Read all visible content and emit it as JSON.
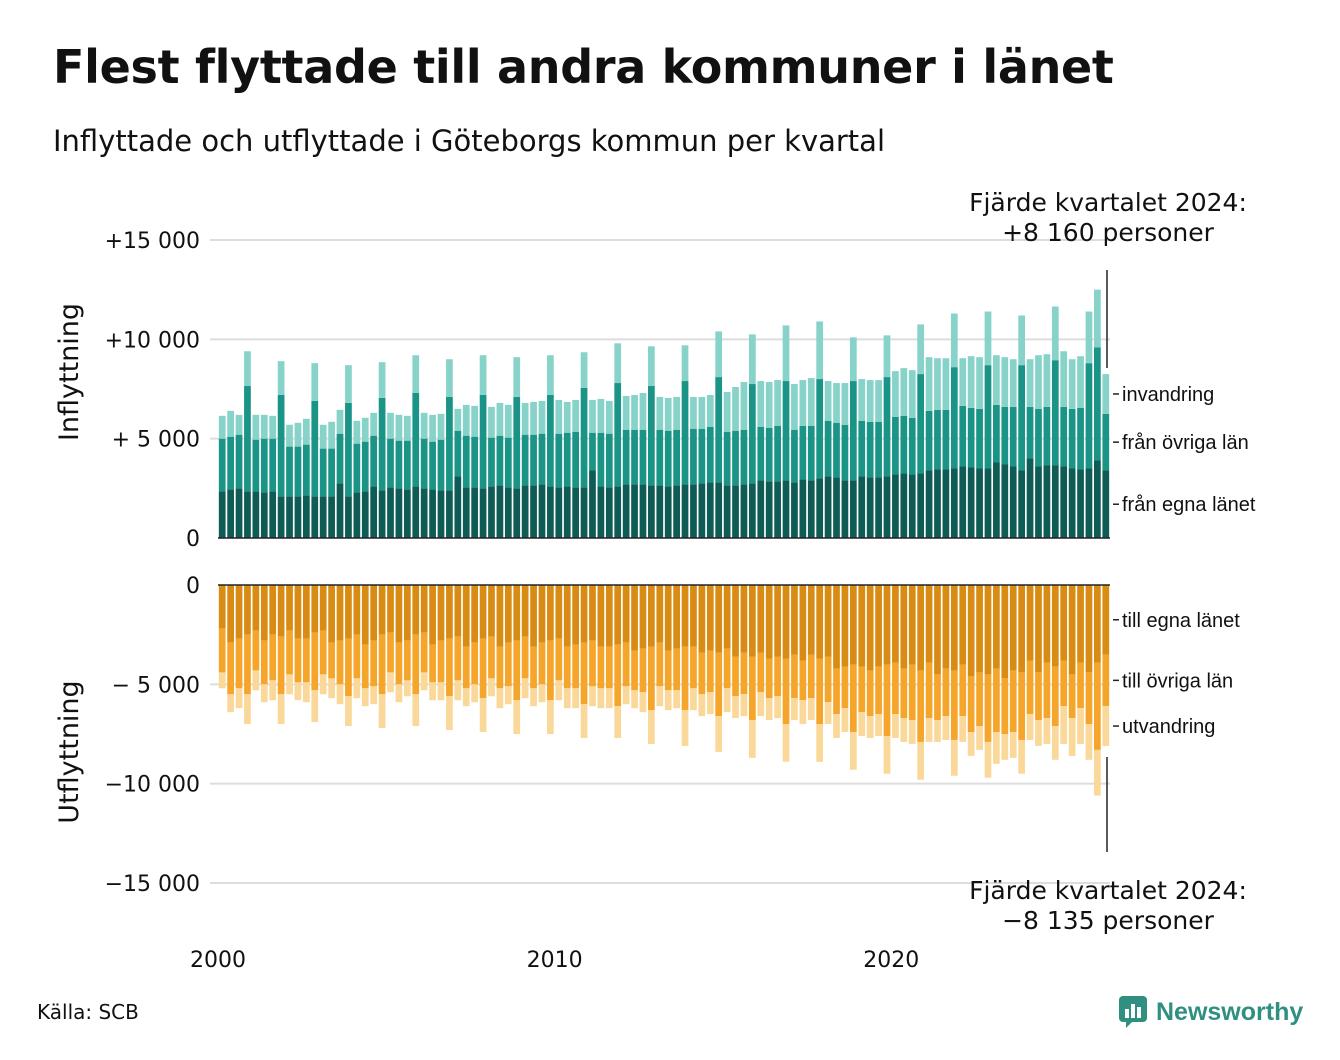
{
  "title": "Flest flyttade till andra kommuner i länet",
  "subtitle": "Inflyttade och utflyttade i Göteborgs kommun per kvartal",
  "source": "Källa: SCB",
  "brand": "Newsworthy",
  "annotations": {
    "in_title": "Fjärde kvartalet 2024:",
    "in_value": "+8 160 personer",
    "out_title": "Fjärde kvartalet 2024:",
    "out_value": "−8 135 personer"
  },
  "colors": {
    "in_egna": "#0e5c55",
    "in_ovriga": "#1a9486",
    "in_invandring": "#88d3c9",
    "out_egna": "#d88c14",
    "out_ovriga": "#f6a52b",
    "out_utvandring": "#fad89a",
    "brand": "#2f8f80",
    "grid": "#dddddd"
  },
  "chart_data": {
    "type": "bar",
    "stacked": true,
    "x_start": "2000-Q1",
    "x_ticks": [
      "2000",
      "2010",
      "2020"
    ],
    "panels": [
      {
        "ylabel": "Inflyttning",
        "ylim": [
          0,
          15000
        ],
        "yticks": [
          0,
          5000,
          10000,
          15000
        ],
        "ytick_labels": [
          "0",
          "+ 5 000",
          "+10 000",
          "+15 000"
        ],
        "series": [
          {
            "name": "från egna länet",
            "values": [
              2350,
              2450,
              2500,
              2350,
              2350,
              2300,
              2350,
              2100,
              2100,
              2100,
              2150,
              2100,
              2100,
              2100,
              2750,
              2100,
              2300,
              2350,
              2600,
              2400,
              2550,
              2500,
              2450,
              2600,
              2500,
              2450,
              2400,
              2400,
              3100,
              2550,
              2550,
              2500,
              2600,
              2650,
              2550,
              2500,
              2650,
              2650,
              2700,
              2600,
              2550,
              2600,
              2550,
              2550,
              3400,
              2600,
              2550,
              2600,
              2700,
              2700,
              2700,
              2650,
              2650,
              2600,
              2650,
              2700,
              2700,
              2750,
              2800,
              2800,
              2650,
              2650,
              2700,
              2750,
              2900,
              2850,
              2850,
              2900,
              2800,
              2950,
              2900,
              3000,
              3100,
              3050,
              2900,
              2900,
              3100,
              3050,
              3050,
              3100,
              3200,
              3250,
              3200,
              3250,
              3400,
              3450,
              3450,
              3500,
              3600,
              3550,
              3500,
              3500,
              3800,
              3700,
              3600,
              3400,
              4000,
              3600,
              3650,
              3650,
              3600,
              3500,
              3450,
              3500,
              3900,
              3400
            ]
          },
          {
            "name": "från övriga län",
            "values": [
              2650,
              2650,
              2700,
              5300,
              2600,
              2700,
              2650,
              5100,
              2500,
              2500,
              2550,
              4800,
              2400,
              2400,
              2500,
              4700,
              2450,
              2500,
              2550,
              4650,
              2450,
              2400,
              2450,
              4700,
              2500,
              2400,
              2550,
              4700,
              2300,
              2600,
              2550,
              4700,
              2450,
              2500,
              2500,
              4600,
              2550,
              2550,
              2550,
              4600,
              2700,
              2700,
              2800,
              5000,
              1900,
              2700,
              2700,
              5200,
              2750,
              2750,
              2750,
              5000,
              2800,
              2800,
              2800,
              5200,
              2800,
              2750,
              2800,
              5300,
              2700,
              2750,
              2750,
              5000,
              2700,
              2700,
              2800,
              5000,
              2650,
              2700,
              2750,
              5000,
              2800,
              2750,
              2800,
              5000,
              2800,
              2800,
              2800,
              5000,
              2900,
              2900,
              2850,
              5000,
              3000,
              3000,
              3000,
              5100,
              3050,
              3000,
              3000,
              5200,
              2900,
              2900,
              3000,
              5300,
              2600,
              2900,
              2950,
              5300,
              3000,
              3000,
              3100,
              5300,
              5700,
              2850
            ]
          },
          {
            "name": "invandring",
            "values": [
              1150,
              1300,
              1000,
              1750,
              1250,
              1200,
              1150,
              1700,
              1100,
              1200,
              1300,
              1900,
              1200,
              1350,
              1200,
              1900,
              1150,
              1200,
              1150,
              1800,
              1300,
              1300,
              1250,
              1900,
              1300,
              1350,
              1300,
              1900,
              1100,
              1550,
              1550,
              2000,
              1550,
              1650,
              1650,
              2000,
              1600,
              1650,
              1650,
              2000,
              1700,
              1550,
              1600,
              1800,
              1650,
              1700,
              1650,
              2000,
              1700,
              1750,
              1850,
              2000,
              1650,
              1650,
              1650,
              1800,
              1600,
              1600,
              1600,
              2300,
              2000,
              2200,
              2400,
              2500,
              2300,
              2300,
              2300,
              2800,
              2300,
              2300,
              2400,
              2900,
              2000,
              2000,
              2100,
              2200,
              2100,
              2100,
              2100,
              2100,
              2300,
              2400,
              2400,
              2500,
              2700,
              2600,
              2600,
              2700,
              2400,
              2600,
              2600,
              2700,
              2500,
              2500,
              2400,
              2500,
              2400,
              2700,
              2650,
              2700,
              2800,
              2500,
              2600,
              2600,
              2900,
              2000
            ]
          }
        ]
      },
      {
        "ylabel": "Utflyttning",
        "ylim": [
          -15000,
          0
        ],
        "yticks": [
          0,
          -5000,
          -10000,
          -15000
        ],
        "ytick_labels": [
          "0",
          "− 5 000",
          "−10 000",
          "−15 000"
        ],
        "series": [
          {
            "name": "till egna länet",
            "values": [
              -2200,
              -2900,
              -2700,
              -2500,
              -2300,
              -2800,
              -2500,
              -2600,
              -2300,
              -2700,
              -2700,
              -2400,
              -2300,
              -2900,
              -2800,
              -2700,
              -2500,
              -3000,
              -2800,
              -2500,
              -2400,
              -2900,
              -2800,
              -2500,
              -2400,
              -3000,
              -2800,
              -2700,
              -2600,
              -3100,
              -2900,
              -2700,
              -2600,
              -3100,
              -2900,
              -2800,
              -2600,
              -3100,
              -2900,
              -2800,
              -2700,
              -3100,
              -3000,
              -2900,
              -2800,
              -3100,
              -3100,
              -3000,
              -2900,
              -3300,
              -3200,
              -3100,
              -2900,
              -3300,
              -3200,
              -3100,
              -3100,
              -3400,
              -3300,
              -3400,
              -3200,
              -3600,
              -3400,
              -3600,
              -3400,
              -3700,
              -3600,
              -3700,
              -3500,
              -3800,
              -3500,
              -3700,
              -3600,
              -4200,
              -4100,
              -4000,
              -4100,
              -4300,
              -4100,
              -4000,
              -3900,
              -4200,
              -4000,
              -4300,
              -3900,
              -4500,
              -4200,
              -4300,
              -4000,
              -4600,
              -4400,
              -4500,
              -4200,
              -4700,
              -4300,
              -4400,
              -3800,
              -4400,
              -3900,
              -4100,
              -3800,
              -4500,
              -3900,
              -4400,
              -3900,
              -3500
            ]
          },
          {
            "name": "till övriga län",
            "values": [
              -2200,
              -2600,
              -2500,
              -3000,
              -2000,
              -2200,
              -2300,
              -2900,
              -2200,
              -2200,
              -2200,
              -2900,
              -2200,
              -1800,
              -2200,
              -2900,
              -2200,
              -2200,
              -2300,
              -3000,
              -2000,
              -2100,
              -2000,
              -3000,
              -2000,
              -1900,
              -2100,
              -2900,
              -2200,
              -2100,
              -2100,
              -3000,
              -2100,
              -2100,
              -2200,
              -3000,
              -2100,
              -2100,
              -2100,
              -3000,
              -2100,
              -2100,
              -2200,
              -3100,
              -2300,
              -2100,
              -2100,
              -3100,
              -2200,
              -2000,
              -2200,
              -3200,
              -2200,
              -2000,
              -2100,
              -3200,
              -2100,
              -2100,
              -2100,
              -3200,
              -2000,
              -2000,
              -2100,
              -3200,
              -2000,
              -2000,
              -2000,
              -3300,
              -2200,
              -2000,
              -2200,
              -3300,
              -2300,
              -2300,
              -2100,
              -3400,
              -2300,
              -2300,
              -2400,
              -3600,
              -2600,
              -2500,
              -2800,
              -3600,
              -2800,
              -2300,
              -2400,
              -3500,
              -2600,
              -2800,
              -2700,
              -3400,
              -3200,
              -2800,
              -3100,
              -3400,
              -2700,
              -2400,
              -2800,
              -3000,
              -2300,
              -2200,
              -2300,
              -2600,
              -4400,
              -2600
            ]
          },
          {
            "name": "utvandring",
            "values": [
              -800,
              -900,
              -1000,
              -1500,
              -1000,
              -900,
              -1000,
              -1500,
              -1000,
              -900,
              -1000,
              -1600,
              -1000,
              -1000,
              -1000,
              -1500,
              -1000,
              -900,
              -900,
              -1700,
              -1000,
              -900,
              -800,
              -1600,
              -900,
              -900,
              -900,
              -1700,
              -1000,
              -900,
              -900,
              -1700,
              -900,
              -1000,
              -900,
              -1700,
              -1000,
              -900,
              -900,
              -1700,
              -1000,
              -1000,
              -1000,
              -1700,
              -1000,
              -1000,
              -1000,
              -1600,
              -900,
              -900,
              -1000,
              -1700,
              -1000,
              -1000,
              -900,
              -1800,
              -1100,
              -1100,
              -1100,
              -1800,
              -1200,
              -1100,
              -1100,
              -1900,
              -1200,
              -1100,
              -1100,
              -1900,
              -1100,
              -1200,
              -1100,
              -1900,
              -1100,
              -1200,
              -1200,
              -1900,
              -1200,
              -1100,
              -1100,
              -1900,
              -1200,
              -1200,
              -1200,
              -1900,
              -1200,
              -1100,
              -1200,
              -1800,
              -1300,
              -1200,
              -1200,
              -1800,
              -1600,
              -1300,
              -1300,
              -1700,
              -1300,
              -1300,
              -1300,
              -1700,
              -1900,
              -1900,
              -1800,
              -1800,
              -2300,
              -2000
            ]
          }
        ]
      }
    ]
  }
}
